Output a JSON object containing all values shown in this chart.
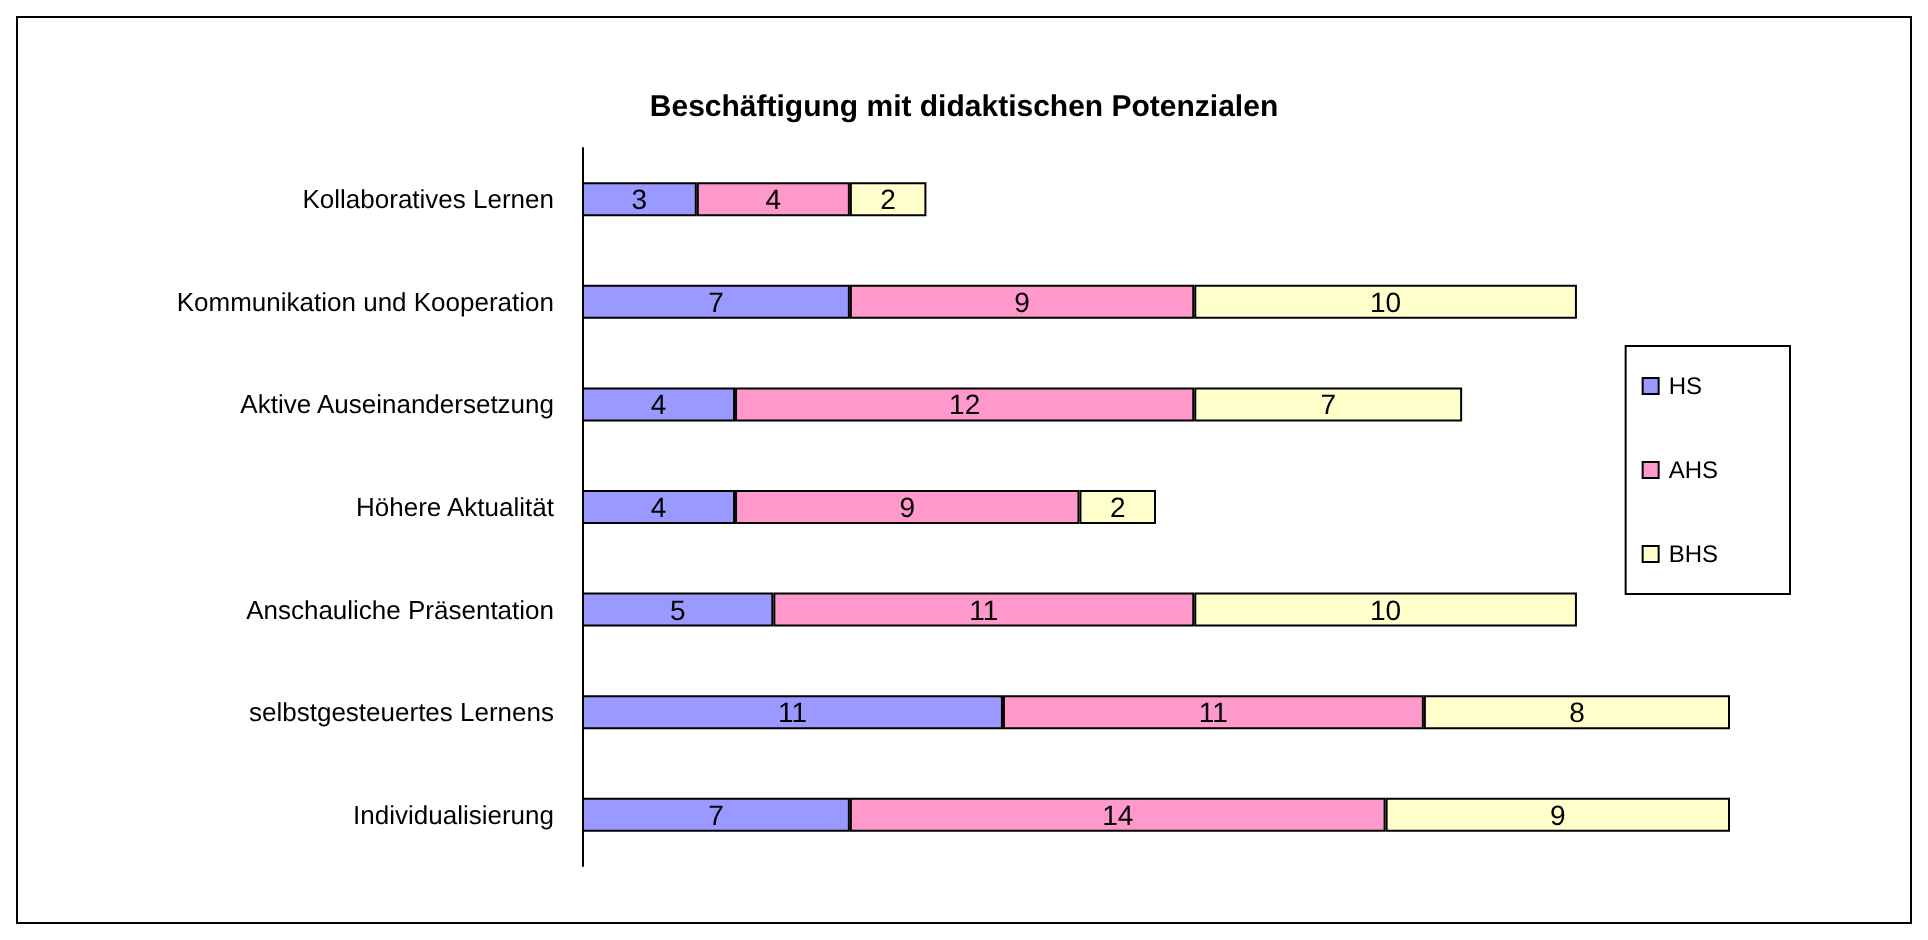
{
  "chart_data": {
    "type": "bar",
    "orientation": "horizontal",
    "stacked": true,
    "title": "Beschäftigung mit didaktischen Potenzialen",
    "categories": [
      "Kollaboratives Lernen",
      "Kommunikation und Kooperation",
      "Aktive Auseinandersetzung",
      "Höhere Aktualität",
      "Anschauliche Präsentation",
      "selbstgesteuertes Lernens",
      "Individualisierung"
    ],
    "series": [
      {
        "name": "HS",
        "color": "#9999ff",
        "values": [
          3,
          7,
          4,
          4,
          5,
          11,
          7
        ]
      },
      {
        "name": "AHS",
        "color": "#ff99cc",
        "values": [
          4,
          9,
          12,
          9,
          11,
          11,
          14
        ]
      },
      {
        "name": "BHS",
        "color": "#ffffcc",
        "values": [
          2,
          10,
          7,
          2,
          10,
          8,
          9
        ]
      }
    ],
    "data_labels": true,
    "legend": "right",
    "tick_labels": "y"
  }
}
